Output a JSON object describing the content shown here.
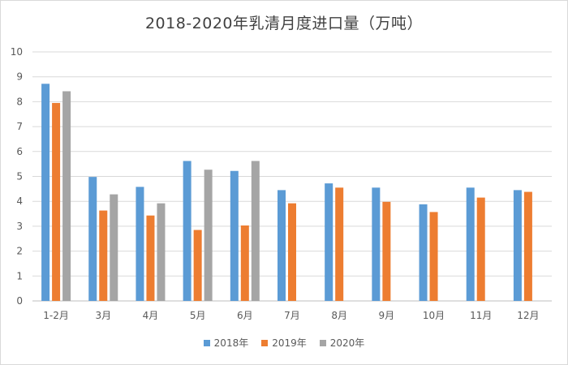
{
  "chart_data": {
    "type": "bar",
    "title": "2018-2020年乳清月度进口量（万吨）",
    "xlabel": "",
    "ylabel": "",
    "ylim": [
      0,
      10
    ],
    "yticks": [
      0,
      1,
      2,
      3,
      4,
      5,
      6,
      7,
      8,
      9,
      10
    ],
    "grid": true,
    "legend_position": "bottom",
    "categories": [
      "1-2月",
      "3月",
      "4月",
      "5月",
      "6月",
      "7月",
      "8月",
      "9月",
      "10月",
      "11月",
      "12月"
    ],
    "series": [
      {
        "name": "2018年",
        "color": "#5b9bd5",
        "values": [
          8.72,
          4.98,
          4.58,
          5.62,
          5.22,
          4.45,
          4.72,
          4.55,
          3.88,
          4.55,
          4.45
        ]
      },
      {
        "name": "2019年",
        "color": "#ed7d31",
        "values": [
          7.95,
          3.63,
          3.43,
          2.85,
          3.03,
          3.92,
          4.55,
          3.98,
          3.57,
          4.15,
          4.38
        ]
      },
      {
        "name": "2020年",
        "color": "#a5a5a5",
        "values": [
          8.42,
          4.28,
          3.92,
          5.27,
          5.62,
          null,
          null,
          null,
          null,
          null,
          null
        ]
      }
    ]
  }
}
